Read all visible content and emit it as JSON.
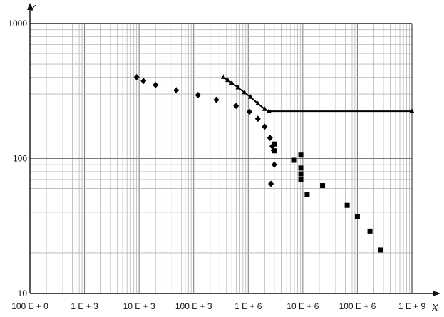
{
  "chart_data": {
    "type": "scatter",
    "title": "",
    "xlabel": "X",
    "ylabel": "Y",
    "x_scale": "log",
    "y_scale": "log",
    "xlim": [
      100,
      1000000000
    ],
    "ylim": [
      10,
      1000
    ],
    "grid": true,
    "x_ticks": [
      {
        "value": 100,
        "label": "100 E + 0"
      },
      {
        "value": 1000,
        "label": "1 E + 3"
      },
      {
        "value": 10000,
        "label": "10 E + 3"
      },
      {
        "value": 100000,
        "label": "100 E + 3"
      },
      {
        "value": 1000000,
        "label": "1 E + 6"
      },
      {
        "value": 10000000,
        "label": "10 E + 6"
      },
      {
        "value": 100000000,
        "label": "100 E + 6"
      },
      {
        "value": 1000000000,
        "label": "1 E + 9"
      }
    ],
    "y_ticks": [
      {
        "value": 1000,
        "label": "1000"
      },
      {
        "value": 100,
        "label": "100"
      },
      {
        "value": 10,
        "label": "10"
      }
    ],
    "series": [
      {
        "marker": "diamond",
        "color": "#000000",
        "points": [
          {
            "x": 9000,
            "y": 400
          },
          {
            "x": 12000,
            "y": 375
          },
          {
            "x": 20000,
            "y": 350
          },
          {
            "x": 48000,
            "y": 320
          },
          {
            "x": 120000,
            "y": 295
          },
          {
            "x": 260000,
            "y": 272
          },
          {
            "x": 600000,
            "y": 245
          },
          {
            "x": 1050000,
            "y": 222
          },
          {
            "x": 1500000,
            "y": 197
          },
          {
            "x": 2000000,
            "y": 172
          },
          {
            "x": 2500000,
            "y": 142
          },
          {
            "x": 2750000,
            "y": 123
          },
          {
            "x": 2900000,
            "y": 115
          },
          {
            "x": 3000000,
            "y": 90
          },
          {
            "x": 2600000,
            "y": 65
          }
        ]
      },
      {
        "marker": "square",
        "color": "#000000",
        "points": [
          {
            "x": 3000000,
            "y": 128
          },
          {
            "x": 3000000,
            "y": 114
          },
          {
            "x": 7000000,
            "y": 97
          },
          {
            "x": 9200000,
            "y": 106
          },
          {
            "x": 9200000,
            "y": 85
          },
          {
            "x": 9200000,
            "y": 77
          },
          {
            "x": 9200000,
            "y": 70
          },
          {
            "x": 12000000,
            "y": 54
          },
          {
            "x": 23000000,
            "y": 63
          },
          {
            "x": 65000000,
            "y": 45
          },
          {
            "x": 100000000,
            "y": 37
          },
          {
            "x": 170000000,
            "y": 29
          },
          {
            "x": 270000000,
            "y": 21
          }
        ]
      },
      {
        "marker": "triangle",
        "color": "#000000",
        "line": true,
        "points": [
          {
            "x": 350000,
            "y": 400
          },
          {
            "x": 420000,
            "y": 380
          },
          {
            "x": 500000,
            "y": 362
          },
          {
            "x": 650000,
            "y": 335
          },
          {
            "x": 850000,
            "y": 308
          },
          {
            "x": 1100000,
            "y": 285
          },
          {
            "x": 1500000,
            "y": 255
          },
          {
            "x": 2000000,
            "y": 232
          },
          {
            "x": 2400000,
            "y": 224
          },
          {
            "x": 1000000000,
            "y": 224
          }
        ]
      }
    ]
  }
}
